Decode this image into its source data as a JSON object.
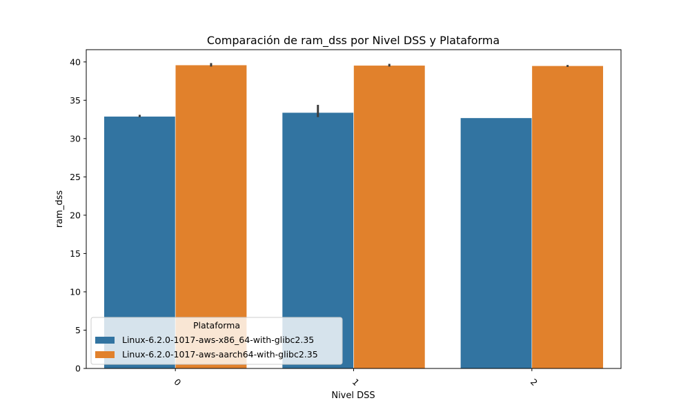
{
  "chart_data": {
    "type": "bar",
    "title": "Comparación de ram_dss por Nivel DSS y Plataforma",
    "xlabel": "Nivel DSS",
    "ylabel": "ram_dss",
    "categories": [
      "0",
      "1",
      "2"
    ],
    "yticks": [
      "0",
      "5",
      "10",
      "15",
      "20",
      "25",
      "30",
      "35",
      "40"
    ],
    "ylim": [
      0,
      41.6
    ],
    "grid": false,
    "legend": {
      "title": "Plataforma",
      "placement": "lower-left"
    },
    "series": [
      {
        "name": "Linux-6.2.0-1017-aws-x86_64-with-glibc2.35",
        "color": "#3274a1",
        "values": [
          32.9,
          33.4,
          32.7
        ],
        "error_low": [
          32.8,
          32.8,
          32.7
        ],
        "error_high": [
          33.1,
          34.4,
          32.7
        ]
      },
      {
        "name": "Linux-6.2.0-1017-aws-aarch64-with-glibc2.35",
        "color": "#e1812c",
        "values": [
          39.6,
          39.55,
          39.5
        ],
        "error_low": [
          39.4,
          39.4,
          39.35
        ],
        "error_high": [
          39.85,
          39.75,
          39.6
        ]
      }
    ]
  }
}
